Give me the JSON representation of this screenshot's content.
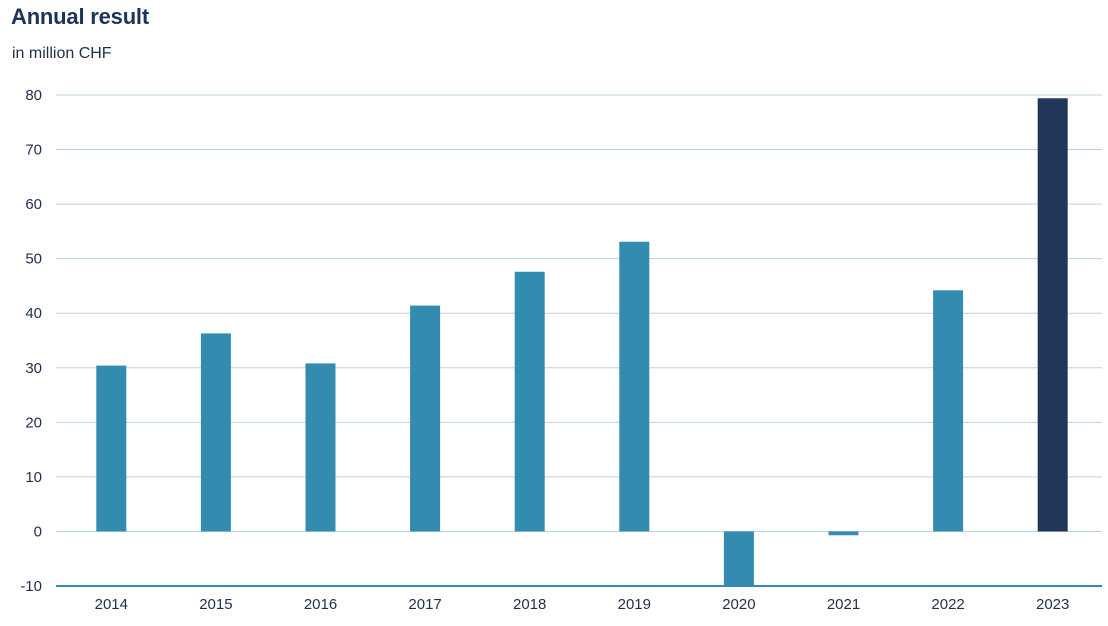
{
  "chart_data": {
    "type": "bar",
    "title": "Annual result",
    "subtitle": "in million CHF",
    "categories": [
      "2014",
      "2015",
      "2016",
      "2017",
      "2018",
      "2019",
      "2020",
      "2021",
      "2022",
      "2023"
    ],
    "values": [
      30.4,
      36.3,
      30.8,
      41.4,
      47.6,
      53.1,
      -10,
      -0.7,
      44.2,
      79.4
    ],
    "ylim": [
      -10,
      80
    ],
    "yticks": [
      "80",
      "70",
      "60",
      "50",
      "40",
      "30",
      "20",
      "10",
      "0",
      "-10"
    ],
    "grid": true,
    "colors": {
      "bar": "#348bb0",
      "highlight": "#21365a",
      "grid": "#b9d3de",
      "axis": "#348bb0"
    },
    "highlight_category": "2023"
  }
}
